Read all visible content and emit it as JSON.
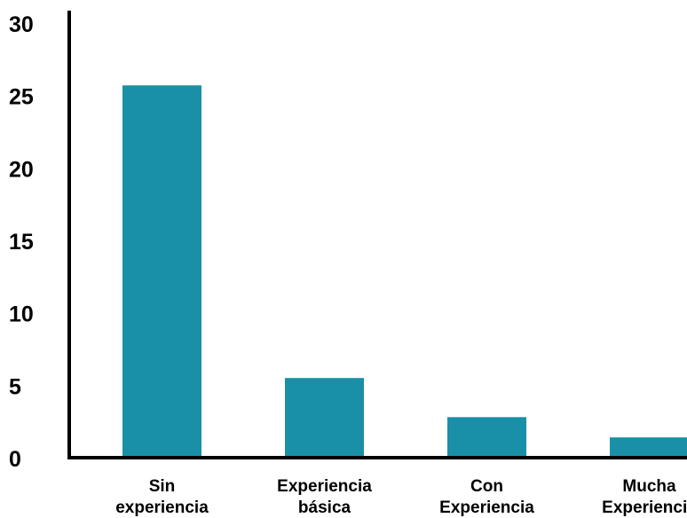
{
  "chart_data": {
    "type": "bar",
    "title": "",
    "xlabel": "",
    "ylabel": "",
    "categories": [
      [
        "Sin",
        "experiencia"
      ],
      [
        "Experiencia",
        "básica"
      ],
      [
        "Con",
        "Experiencia"
      ],
      [
        "Mucha",
        "Experiencia"
      ]
    ],
    "values": [
      25.7,
      5.5,
      2.8,
      1.4
    ],
    "ylim": [
      0,
      30
    ],
    "yticks": [
      "0",
      "5",
      "10",
      "15",
      "20",
      "25",
      "30"
    ],
    "grid": false,
    "legend": "none",
    "colors": {
      "bar": "#1a90a8",
      "axis": "#000000",
      "text": "#000000"
    }
  }
}
